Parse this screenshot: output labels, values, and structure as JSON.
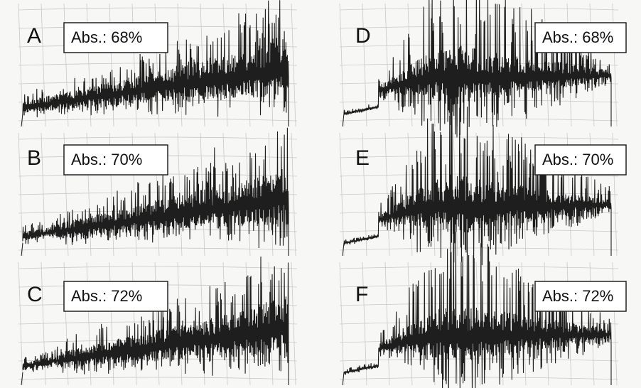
{
  "panels": [
    {
      "letter": "A",
      "label": "Abs.: 68%"
    },
    {
      "letter": "B",
      "label": "Abs.: 70%"
    },
    {
      "letter": "C",
      "label": "Abs.: 72%"
    },
    {
      "letter": "D",
      "label": "Abs.: 68%"
    },
    {
      "letter": "E",
      "label": "Abs.: 70%"
    },
    {
      "letter": "F",
      "label": "Abs.: 72%"
    }
  ]
}
